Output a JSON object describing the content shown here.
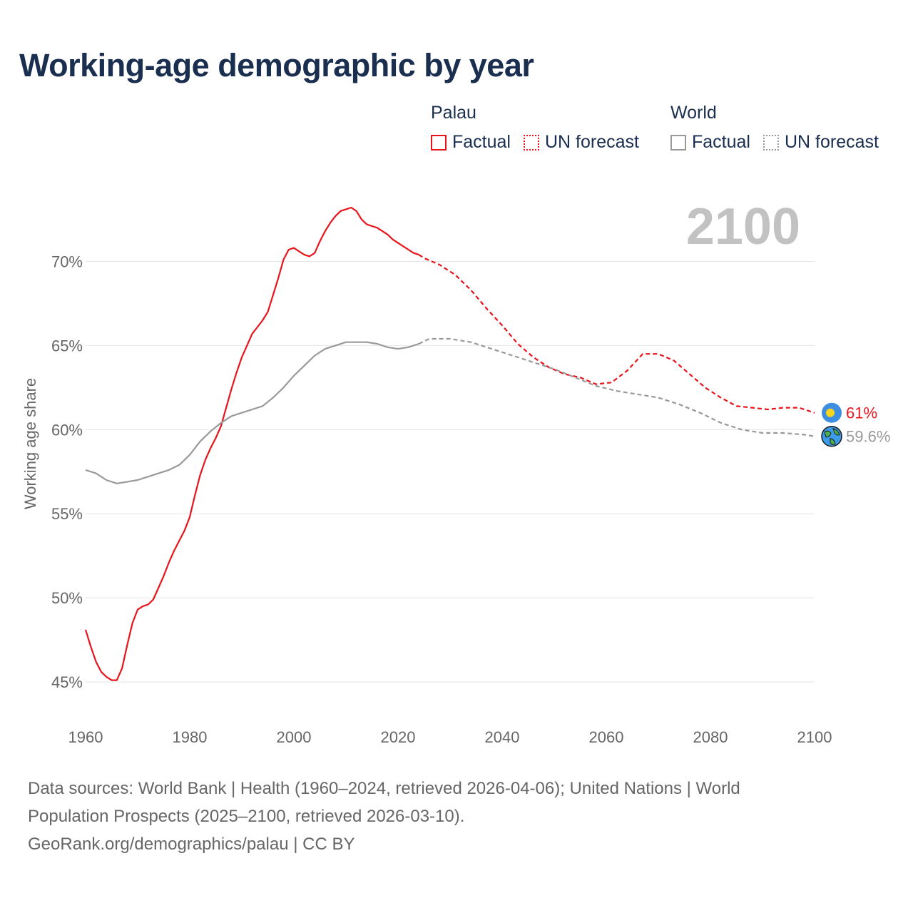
{
  "title": "Working-age demographic by year",
  "legend": {
    "palau": {
      "name": "Palau",
      "factual": "Factual",
      "forecast": "UN forecast",
      "color": "#e8141b"
    },
    "world": {
      "name": "World",
      "factual": "Factual",
      "forecast": "UN forecast",
      "color": "#999999"
    }
  },
  "footer": {
    "line1": "Data sources: World Bank | Health (1960–2024, retrieved 2026-04-06); United Nations | World",
    "line2": "Population Prospects (2025–2100, retrieved 2026-03-10).",
    "line3": "GeoRank.org/demographics/palau | CC BY"
  },
  "chart_data": {
    "type": "line",
    "title": "Working-age demographic by year",
    "ylabel": "Working age share",
    "xlabel": "",
    "year_label": "2100",
    "xlim": [
      1960,
      2100
    ],
    "ylim": [
      44,
      74
    ],
    "x_ticks": [
      1960,
      1980,
      2000,
      2020,
      2040,
      2060,
      2080,
      2100
    ],
    "y_ticks": [
      45,
      50,
      55,
      60,
      65,
      70
    ],
    "y_tick_labels": [
      "45%",
      "50%",
      "55%",
      "60%",
      "65%",
      "70%"
    ],
    "factual_end_year": 2024,
    "series": [
      {
        "name": "Palau",
        "color": "#e8141b",
        "end_label": "61%",
        "x": [
          1960,
          1961,
          1962,
          1963,
          1964,
          1965,
          1966,
          1967,
          1968,
          1969,
          1970,
          1971,
          1972,
          1973,
          1974,
          1975,
          1976,
          1977,
          1978,
          1979,
          1980,
          1981,
          1982,
          1983,
          1984,
          1985,
          1986,
          1987,
          1988,
          1989,
          1990,
          1991,
          1992,
          1993,
          1994,
          1995,
          1996,
          1997,
          1998,
          1999,
          2000,
          2001,
          2002,
          2003,
          2004,
          2005,
          2006,
          2007,
          2008,
          2009,
          2010,
          2011,
          2012,
          2013,
          2014,
          2015,
          2016,
          2017,
          2018,
          2019,
          2020,
          2021,
          2022,
          2023,
          2024,
          2025,
          2028,
          2031,
          2034,
          2037,
          2040,
          2043,
          2046,
          2049,
          2052,
          2055,
          2058,
          2061,
          2064,
          2067,
          2070,
          2073,
          2076,
          2079,
          2082,
          2085,
          2088,
          2091,
          2094,
          2097,
          2100
        ],
        "values": [
          48.1,
          47.1,
          46.2,
          45.6,
          45.3,
          45.1,
          45.1,
          45.8,
          47.2,
          48.5,
          49.3,
          49.5,
          49.6,
          49.9,
          50.6,
          51.3,
          52.1,
          52.8,
          53.4,
          54.0,
          54.8,
          56.1,
          57.3,
          58.2,
          58.9,
          59.5,
          60.2,
          61.3,
          62.4,
          63.4,
          64.3,
          65.0,
          65.7,
          66.1,
          66.5,
          67.0,
          68.0,
          69.0,
          70.1,
          70.7,
          70.8,
          70.6,
          70.4,
          70.3,
          70.5,
          71.2,
          71.8,
          72.3,
          72.7,
          73.0,
          73.1,
          73.2,
          73.0,
          72.5,
          72.2,
          72.1,
          72.0,
          71.8,
          71.6,
          71.3,
          71.1,
          70.9,
          70.7,
          70.5,
          70.4,
          70.2,
          69.8,
          69.2,
          68.3,
          67.2,
          66.2,
          65.1,
          64.3,
          63.7,
          63.3,
          63.1,
          62.7,
          62.8,
          63.5,
          64.5,
          64.5,
          64.1,
          63.3,
          62.5,
          61.9,
          61.4,
          61.3,
          61.2,
          61.3,
          61.3,
          61.0
        ],
        "icon": "palau-flag-icon"
      },
      {
        "name": "World",
        "color": "#999999",
        "end_label": "59.6%",
        "x": [
          1960,
          1962,
          1964,
          1966,
          1968,
          1970,
          1972,
          1974,
          1976,
          1978,
          1980,
          1982,
          1984,
          1986,
          1988,
          1990,
          1992,
          1994,
          1996,
          1998,
          2000,
          2002,
          2004,
          2006,
          2008,
          2010,
          2012,
          2014,
          2016,
          2018,
          2020,
          2022,
          2024,
          2026,
          2030,
          2034,
          2038,
          2042,
          2046,
          2050,
          2054,
          2058,
          2062,
          2066,
          2070,
          2074,
          2078,
          2082,
          2086,
          2090,
          2094,
          2098,
          2100
        ],
        "values": [
          57.6,
          57.4,
          57.0,
          56.8,
          56.9,
          57.0,
          57.2,
          57.4,
          57.6,
          57.9,
          58.5,
          59.3,
          59.9,
          60.4,
          60.8,
          61.0,
          61.2,
          61.4,
          61.9,
          62.5,
          63.2,
          63.8,
          64.4,
          64.8,
          65.0,
          65.2,
          65.2,
          65.2,
          65.1,
          64.9,
          64.8,
          64.9,
          65.1,
          65.4,
          65.4,
          65.2,
          64.8,
          64.4,
          64.0,
          63.6,
          63.1,
          62.6,
          62.3,
          62.1,
          61.9,
          61.5,
          61.0,
          60.4,
          60.0,
          59.8,
          59.8,
          59.7,
          59.6
        ],
        "icon": "globe-icon"
      }
    ]
  }
}
